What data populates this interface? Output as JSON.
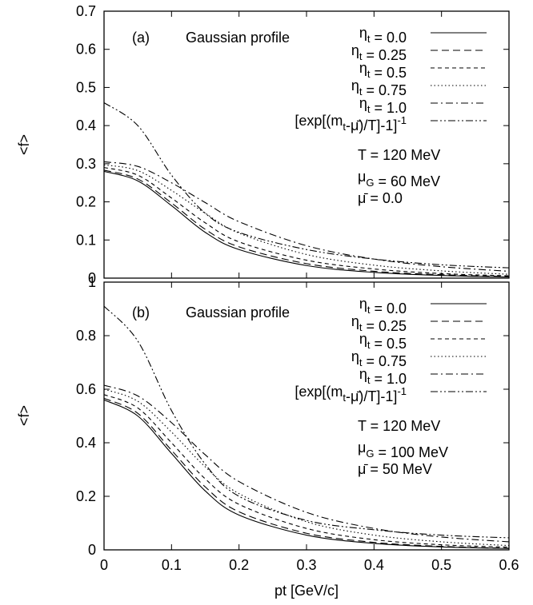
{
  "chart_data": [
    {
      "type": "line",
      "panel_label": "(a)",
      "profile_label": "Gaussian profile",
      "ylabel": "<f>",
      "xlim": [
        0,
        0.6
      ],
      "ylim": [
        0,
        0.7
      ],
      "x_ticks": [
        "0",
        "0.1",
        "0.2",
        "0.3",
        "0.4",
        "0.5",
        "0.6"
      ],
      "y_ticks": [
        "0",
        "0.1",
        "0.2",
        "0.3",
        "0.4",
        "0.5",
        "0.6",
        "0.7"
      ],
      "params": [
        "T = 120 MeV",
        "μG = 60 MeV",
        "μ̄ = 0.0"
      ],
      "series": [
        {
          "name": "ηt = 0.0",
          "dash": "solid",
          "x": [
            0,
            0.05,
            0.1,
            0.15,
            0.2,
            0.3,
            0.4,
            0.5,
            0.6
          ],
          "y": [
            0.28,
            0.255,
            0.19,
            0.12,
            0.075,
            0.033,
            0.015,
            0.007,
            0.003
          ]
        },
        {
          "name": "ηt = 0.25",
          "dash": "long-dash",
          "x": [
            0,
            0.05,
            0.1,
            0.15,
            0.2,
            0.3,
            0.4,
            0.5,
            0.6
          ],
          "y": [
            0.283,
            0.26,
            0.197,
            0.128,
            0.082,
            0.038,
            0.018,
            0.009,
            0.004
          ]
        },
        {
          "name": "ηt = 0.5",
          "dash": "short-dash",
          "x": [
            0,
            0.05,
            0.1,
            0.15,
            0.2,
            0.3,
            0.4,
            0.5,
            0.6
          ],
          "y": [
            0.29,
            0.27,
            0.21,
            0.145,
            0.095,
            0.047,
            0.024,
            0.012,
            0.006
          ]
        },
        {
          "name": "ηt = 0.75",
          "dash": "dotted",
          "x": [
            0,
            0.05,
            0.1,
            0.15,
            0.2,
            0.3,
            0.4,
            0.5,
            0.6
          ],
          "y": [
            0.297,
            0.282,
            0.23,
            0.17,
            0.118,
            0.062,
            0.034,
            0.019,
            0.01
          ]
        },
        {
          "name": "ηt = 1.0",
          "dash": "dash-dot",
          "x": [
            0,
            0.05,
            0.1,
            0.15,
            0.2,
            0.3,
            0.4,
            0.5,
            0.6
          ],
          "y": [
            0.305,
            0.293,
            0.25,
            0.198,
            0.148,
            0.085,
            0.05,
            0.03,
            0.018
          ]
        },
        {
          "name": "[exp[(mt-μ̄)/T]-1]-1",
          "dash": "dash-dot-dot",
          "x": [
            0,
            0.05,
            0.1,
            0.15,
            0.2,
            0.3,
            0.4,
            0.5,
            0.6
          ],
          "y": [
            0.46,
            0.4,
            0.27,
            0.17,
            0.12,
            0.075,
            0.05,
            0.035,
            0.027
          ]
        }
      ]
    },
    {
      "type": "line",
      "panel_label": "(b)",
      "profile_label": "Gaussian profile",
      "ylabel": "<f>",
      "xlabel": "pt [GeV/c]",
      "xlim": [
        0,
        0.6
      ],
      "ylim": [
        0,
        1
      ],
      "x_ticks": [
        "0",
        "0.1",
        "0.2",
        "0.3",
        "0.4",
        "0.5",
        "0.6"
      ],
      "y_ticks": [
        "0",
        "0.2",
        "0.4",
        "0.6",
        "0.8",
        "1"
      ],
      "params": [
        "T = 120 MeV",
        "μG = 100 MeV",
        "μ̄ = 50 MeV"
      ],
      "series": [
        {
          "name": "ηt = 0.0",
          "dash": "solid",
          "x": [
            0,
            0.05,
            0.1,
            0.15,
            0.2,
            0.3,
            0.4,
            0.5,
            0.6
          ],
          "y": [
            0.56,
            0.5,
            0.36,
            0.22,
            0.13,
            0.055,
            0.024,
            0.011,
            0.005
          ]
        },
        {
          "name": "ηt = 0.25",
          "dash": "long-dash",
          "x": [
            0,
            0.05,
            0.1,
            0.15,
            0.2,
            0.3,
            0.4,
            0.5,
            0.6
          ],
          "y": [
            0.566,
            0.51,
            0.372,
            0.235,
            0.142,
            0.062,
            0.028,
            0.013,
            0.006
          ]
        },
        {
          "name": "ηt = 0.5",
          "dash": "short-dash",
          "x": [
            0,
            0.05,
            0.1,
            0.15,
            0.2,
            0.3,
            0.4,
            0.5,
            0.6
          ],
          "y": [
            0.58,
            0.53,
            0.4,
            0.265,
            0.17,
            0.08,
            0.038,
            0.019,
            0.01
          ]
        },
        {
          "name": "ηt = 0.75",
          "dash": "dotted",
          "x": [
            0,
            0.05,
            0.1,
            0.15,
            0.2,
            0.3,
            0.4,
            0.5,
            0.6
          ],
          "y": [
            0.6,
            0.555,
            0.44,
            0.31,
            0.21,
            0.105,
            0.055,
            0.03,
            0.016
          ]
        },
        {
          "name": "ηt = 1.0",
          "dash": "dash-dot",
          "x": [
            0,
            0.05,
            0.1,
            0.15,
            0.2,
            0.3,
            0.4,
            0.5,
            0.6
          ],
          "y": [
            0.615,
            0.575,
            0.475,
            0.355,
            0.255,
            0.14,
            0.08,
            0.048,
            0.03
          ]
        },
        {
          "name": "[exp[(mt-μ̄)/T]-1]-1",
          "dash": "dash-dot-dot",
          "x": [
            0,
            0.05,
            0.1,
            0.15,
            0.2,
            0.3,
            0.4,
            0.5,
            0.6
          ],
          "y": [
            0.91,
            0.78,
            0.52,
            0.32,
            0.2,
            0.11,
            0.075,
            0.055,
            0.045
          ]
        }
      ]
    }
  ]
}
